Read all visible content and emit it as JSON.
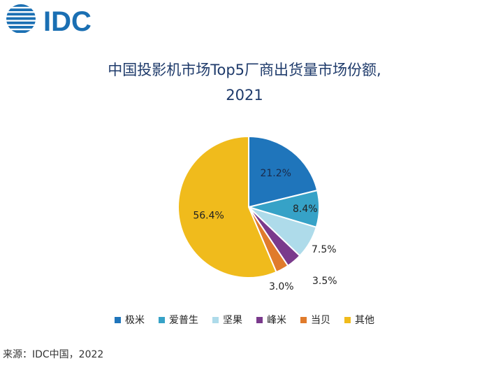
{
  "logo": {
    "text": "IDC",
    "color": "#1a6fb3"
  },
  "title": {
    "line1": "中国投影机市场Top5厂商出货量市场份额,",
    "line2": "2021"
  },
  "chart_data": {
    "type": "pie",
    "title": "中国投影机市场Top5厂商出货量市场份额, 2021",
    "slices": [
      {
        "label": "极米",
        "value": 21.2,
        "display": "21.2%",
        "color": "#1f75bb"
      },
      {
        "label": "爱普生",
        "value": 8.4,
        "display": "8.4%",
        "color": "#36a2c7"
      },
      {
        "label": "坚果",
        "value": 7.5,
        "display": "7.5%",
        "color": "#aedbea"
      },
      {
        "label": "峰米",
        "value": 3.5,
        "display": "3.5%",
        "color": "#7a3a8c"
      },
      {
        "label": "当贝",
        "value": 3.0,
        "display": "3.0%",
        "color": "#e07b2c"
      },
      {
        "label": "其他",
        "value": 56.4,
        "display": "56.4%",
        "color": "#f0bb1c"
      }
    ],
    "start_angle": "12 o'clock",
    "direction": "clockwise",
    "legend_position": "bottom"
  },
  "source": "来源：IDC中国，2022"
}
